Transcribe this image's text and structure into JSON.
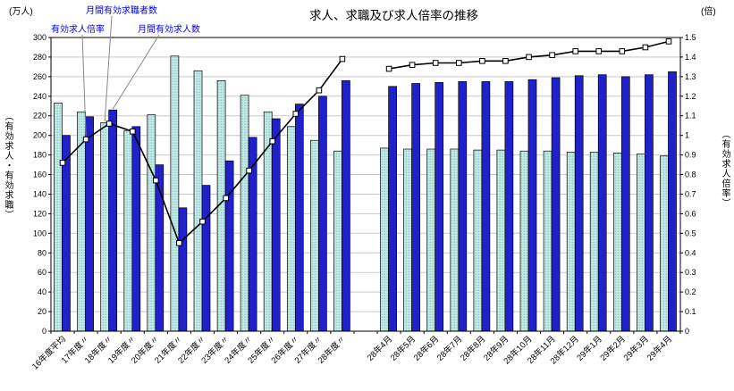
{
  "title": "求人、求職及び求人倍率の推移",
  "left_unit": "(万人)",
  "right_unit": "(倍)",
  "left_axis_title": "（有効求人・有効求職）",
  "right_axis_title": "（有効求人倍率）",
  "annotations": {
    "ratio_label": "有効求人倍率",
    "seekers_label": "月間有効求職者数",
    "openings_label": "月間有効求人数"
  },
  "chart_data": {
    "type": "bar+line",
    "title": "求人、求職及び求人倍率の推移",
    "categories": [
      "16年度平均",
      "17年度〃",
      "18年度〃",
      "19年度〃",
      "20年度〃",
      "21年度〃",
      "22年度〃",
      "23年度〃",
      "24年度〃",
      "25年度〃",
      "26年度〃",
      "27年度〃",
      "28年度〃",
      "28年4月",
      "28年5月",
      "28年6月",
      "28年7月",
      "28年8月",
      "28年9月",
      "28年10月",
      "28年11月",
      "28年12月",
      "29年1月",
      "29年2月",
      "29年3月",
      "29年4月"
    ],
    "gap_after_index": 12,
    "left_axis": {
      "min": 0,
      "max": 300,
      "step": 20,
      "unit": "万人"
    },
    "right_axis": {
      "min": 0,
      "max": 1.5,
      "step": 0.1,
      "unit": "倍"
    },
    "grid": "horizontal",
    "series": [
      {
        "name": "月間有効求職者数",
        "type": "bar",
        "axis": "left",
        "color": "#c2e9e6",
        "dot_color": "#5fa8a4",
        "values": [
          233,
          224,
          213,
          205,
          221,
          281,
          266,
          256,
          241,
          224,
          209,
          195,
          184,
          187,
          186,
          186,
          186,
          185,
          185,
          184,
          184,
          183,
          183,
          182,
          181,
          179
        ]
      },
      {
        "name": "月間有効求人数",
        "type": "bar",
        "axis": "left",
        "color": "#2121cc",
        "values": [
          200,
          219,
          226,
          209,
          170,
          126,
          149,
          174,
          198,
          217,
          232,
          240,
          256,
          250,
          253,
          254,
          255,
          255,
          255,
          257,
          259,
          261,
          262,
          260,
          262,
          265
        ]
      },
      {
        "name": "有効求人倍率",
        "type": "line",
        "axis": "right",
        "color": "#000000",
        "marker": "white-square",
        "values": [
          0.86,
          0.98,
          1.06,
          1.02,
          0.77,
          0.45,
          0.56,
          0.68,
          0.82,
          0.97,
          1.11,
          1.23,
          1.39,
          1.34,
          1.36,
          1.37,
          1.37,
          1.38,
          1.38,
          1.4,
          1.41,
          1.43,
          1.43,
          1.43,
          1.45,
          1.48
        ]
      }
    ]
  }
}
